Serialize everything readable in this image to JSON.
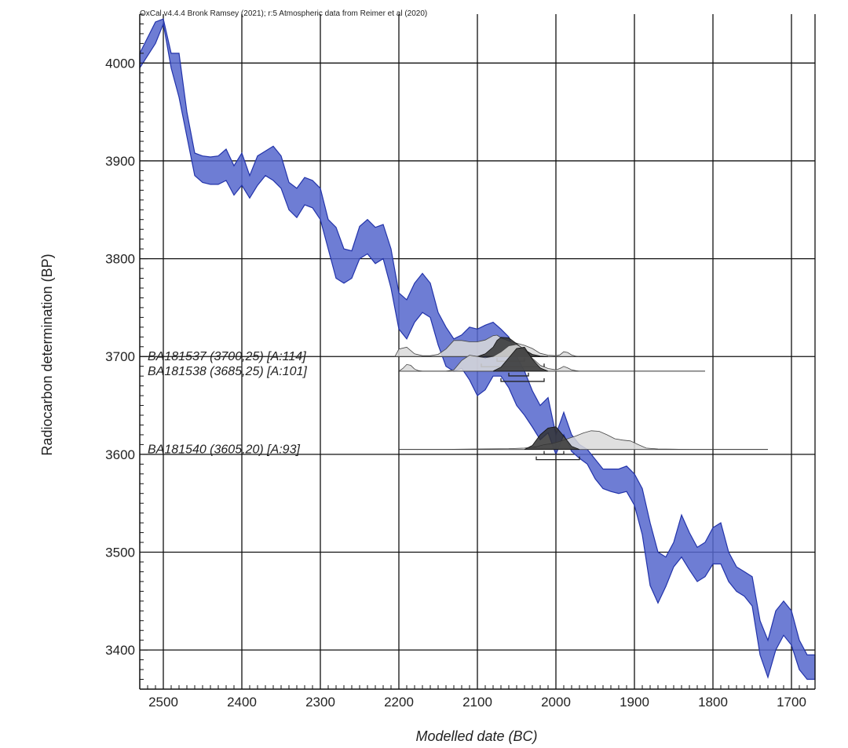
{
  "chart_data": {
    "type": "area",
    "credit": "OxCal v4.4.4 Bronk Ramsey (2021); r:5 Atmospheric data from Reimer et al (2020)",
    "xlabel": "Modelled date (BC)",
    "ylabel": "Radiocarbon determination (BP)",
    "xlim": [
      2530,
      1670
    ],
    "ylim": [
      3360,
      4050
    ],
    "x_ticks": [
      2500,
      2400,
      2300,
      2200,
      2100,
      2000,
      1900,
      1800,
      1700
    ],
    "y_ticks": [
      4000,
      3900,
      3800,
      3700,
      3600,
      3500,
      3400
    ],
    "x_tick_labels": [
      "2500",
      "2400",
      "2300",
      "2200",
      "2100",
      "2000",
      "1900",
      "1800",
      "1700"
    ],
    "y_tick_labels": [
      "4000",
      "3900",
      "3800",
      "3700",
      "3600",
      "3500",
      "3400"
    ],
    "grid": true,
    "curve_color": "#5566cc",
    "calibration_curve": {
      "x": [
        2530,
        2510,
        2500,
        2490,
        2480,
        2470,
        2460,
        2450,
        2440,
        2430,
        2420,
        2410,
        2400,
        2390,
        2380,
        2370,
        2360,
        2350,
        2340,
        2330,
        2320,
        2310,
        2300,
        2290,
        2280,
        2270,
        2260,
        2250,
        2240,
        2230,
        2220,
        2210,
        2200,
        2190,
        2180,
        2170,
        2160,
        2150,
        2140,
        2130,
        2120,
        2110,
        2100,
        2090,
        2080,
        2070,
        2060,
        2050,
        2040,
        2030,
        2020,
        2010,
        2000,
        1990,
        1980,
        1970,
        1960,
        1950,
        1940,
        1930,
        1920,
        1910,
        1900,
        1890,
        1880,
        1870,
        1860,
        1850,
        1840,
        1830,
        1820,
        1810,
        1800,
        1790,
        1780,
        1770,
        1760,
        1750,
        1740,
        1730,
        1720,
        1710,
        1700,
        1690,
        1680,
        1670
      ],
      "upper": [
        4010,
        4042,
        4045,
        4010,
        4010,
        3950,
        3908,
        3905,
        3904,
        3905,
        3912,
        3895,
        3908,
        3885,
        3905,
        3910,
        3915,
        3905,
        3878,
        3872,
        3883,
        3880,
        3872,
        3840,
        3832,
        3810,
        3808,
        3833,
        3840,
        3832,
        3835,
        3810,
        3765,
        3758,
        3775,
        3785,
        3775,
        3745,
        3730,
        3718,
        3722,
        3730,
        3728,
        3732,
        3735,
        3728,
        3720,
        3700,
        3685,
        3665,
        3650,
        3658,
        3620,
        3643,
        3620,
        3610,
        3605,
        3595,
        3585,
        3585,
        3585,
        3588,
        3580,
        3565,
        3530,
        3500,
        3495,
        3510,
        3538,
        3520,
        3505,
        3510,
        3525,
        3530,
        3500,
        3485,
        3480,
        3475,
        3430,
        3410,
        3440,
        3450,
        3440,
        3410,
        3395,
        3395
      ],
      "lower": [
        3995,
        4020,
        4040,
        3995,
        3965,
        3925,
        3885,
        3878,
        3876,
        3876,
        3880,
        3865,
        3875,
        3862,
        3875,
        3885,
        3880,
        3872,
        3850,
        3842,
        3855,
        3852,
        3840,
        3810,
        3780,
        3775,
        3780,
        3800,
        3805,
        3795,
        3800,
        3770,
        3728,
        3718,
        3735,
        3745,
        3740,
        3712,
        3690,
        3685,
        3688,
        3676,
        3660,
        3666,
        3680,
        3680,
        3668,
        3650,
        3640,
        3628,
        3615,
        3622,
        3600,
        3620,
        3603,
        3596,
        3590,
        3575,
        3565,
        3562,
        3560,
        3562,
        3548,
        3518,
        3466,
        3448,
        3465,
        3485,
        3495,
        3482,
        3470,
        3475,
        3488,
        3488,
        3470,
        3460,
        3455,
        3445,
        3395,
        3372,
        3400,
        3415,
        3405,
        3380,
        3370,
        3370
      ]
    },
    "samples": [
      {
        "name": "BA181537 (3700,25) [A:114]",
        "bp": 3700,
        "line_extent": [
          2200,
          1880
        ],
        "prior_x": [
          2205,
          2200,
          2190,
          2180,
          2170,
          2160,
          2150,
          2140,
          2130,
          2120,
          2110,
          2100,
          2090,
          2080,
          2075,
          2070,
          2060,
          2050,
          2040,
          2030,
          2020,
          2010,
          2000,
          1995,
          1990,
          1985,
          1980,
          1975,
          1970
        ],
        "prior_y": [
          0,
          0.28,
          0.35,
          0.1,
          0.03,
          0.03,
          0.08,
          0.28,
          0.6,
          0.6,
          0.55,
          0.55,
          0.62,
          0.78,
          0.8,
          0.7,
          0.58,
          0.5,
          0.42,
          0.3,
          0.12,
          0.05,
          0.03,
          0.06,
          0.18,
          0.15,
          0.06,
          0.02,
          0
        ],
        "posterior_x": [
          2100,
          2090,
          2080,
          2075,
          2070,
          2060,
          2050,
          2040,
          2030,
          2020,
          2010
        ],
        "posterior_y": [
          0,
          0.1,
          0.35,
          0.6,
          0.72,
          0.7,
          0.48,
          0.25,
          0.08,
          0.02,
          0
        ],
        "ranges": [
          [
            2075,
            2040
          ],
          [
            2095,
            2015
          ]
        ]
      },
      {
        "name": "BA181538 (3685,25) [A:101]",
        "bp": 3685,
        "line_extent": [
          2200,
          1810
        ],
        "prior_x": [
          2200,
          2195,
          2190,
          2185,
          2180,
          2175,
          2170,
          2160,
          2150,
          2140,
          2130,
          2120,
          2110,
          2100,
          2090,
          2080,
          2070,
          2060,
          2050,
          2040,
          2030,
          2020,
          2010,
          2000,
          1995,
          1990,
          1985,
          1980,
          1975,
          1970
        ],
        "prior_y": [
          0,
          0.1,
          0.25,
          0.22,
          0.08,
          0.02,
          0,
          0,
          0,
          0,
          0.05,
          0.4,
          0.6,
          0.55,
          0.5,
          0.55,
          0.72,
          0.95,
          1.0,
          0.82,
          0.48,
          0.22,
          0.1,
          0.05,
          0.1,
          0.18,
          0.12,
          0.05,
          0.02,
          0
        ],
        "posterior_x": [
          2080,
          2070,
          2060,
          2050,
          2040,
          2030,
          2020,
          2010
        ],
        "posterior_y": [
          0,
          0.15,
          0.5,
          0.85,
          0.9,
          0.45,
          0.12,
          0
        ],
        "ranges": [
          [
            2060,
            2035
          ],
          [
            2070,
            2015
          ]
        ]
      },
      {
        "name": "BA181540 (3605,20) [A:93]",
        "bp": 3605,
        "line_extent": [
          2200,
          1730
        ],
        "prior_x": [
          2150,
          2100,
          2060,
          2040,
          2025,
          2015,
          2005,
          1995,
          1985,
          1975,
          1965,
          1955,
          1945,
          1935,
          1925,
          1915,
          1905,
          1895,
          1885,
          1870,
          1850,
          1830
        ],
        "prior_y": [
          0,
          0.02,
          0.03,
          0.05,
          0.1,
          0.18,
          0.22,
          0.3,
          0.4,
          0.5,
          0.62,
          0.7,
          0.68,
          0.55,
          0.4,
          0.35,
          0.32,
          0.18,
          0.05,
          0.02,
          0.01,
          0
        ],
        "posterior_x": [
          2040,
          2030,
          2020,
          2010,
          2000,
          1990,
          1980,
          1970
        ],
        "posterior_y": [
          0,
          0.15,
          0.55,
          0.8,
          0.85,
          0.5,
          0.12,
          0
        ],
        "ranges": [
          [
            2015,
            1990
          ],
          [
            2025,
            1970
          ]
        ]
      }
    ]
  }
}
